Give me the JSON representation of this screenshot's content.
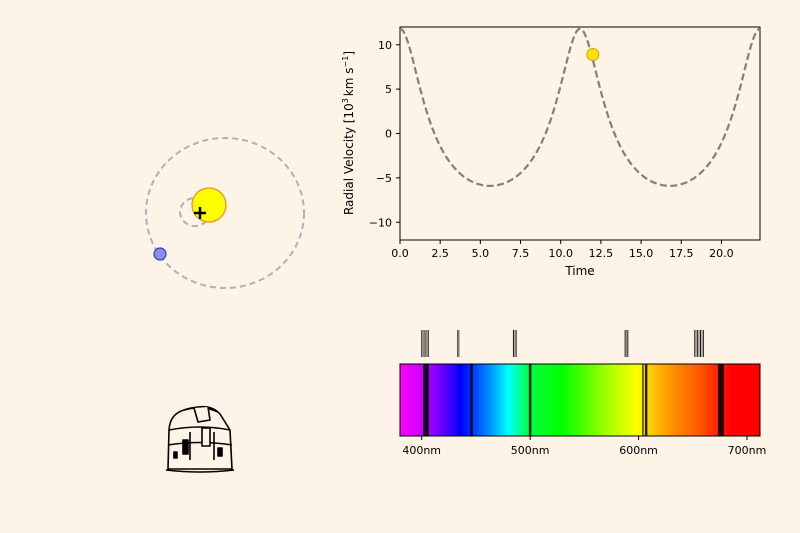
{
  "chart_data": [
    {
      "type": "orbit-diagram",
      "star": {
        "color": "#ffff00",
        "edge": "#f08a28"
      },
      "planet": {
        "color": "#8a8cf0",
        "edge": "#3a3cb0"
      },
      "barycenter_marker": "+",
      "orbit_color": "#b0b0b8"
    },
    {
      "type": "line",
      "xlabel": "Time",
      "ylabel_main": "Radial Velocity [10",
      "ylabel_sup1": "3",
      "ylabel_mid": "km s",
      "ylabel_sup2": "−1",
      "ylabel_end": "]",
      "xlim": [
        0,
        22.4
      ],
      "ylim": [
        -12,
        12
      ],
      "xticks": [
        0,
        2.5,
        5,
        7.5,
        10,
        12.5,
        15,
        17.5,
        20
      ],
      "xtick_labels": [
        "0.0",
        "2.5",
        "5.0",
        "7.5",
        "10.0",
        "12.5",
        "15.0",
        "17.5",
        "20.0"
      ],
      "yticks": [
        -10,
        -5,
        0,
        5,
        10
      ],
      "ytick_labels": [
        "−10",
        "−5",
        "0",
        "5",
        "10"
      ],
      "curve": {
        "period": 11.2,
        "peak_time": 11.2,
        "max": 11.8,
        "min": -5.9,
        "eccentricity": 0.35,
        "color": "#808080",
        "style": "dashed"
      },
      "current_point": {
        "x": 12.0,
        "y": 8.9,
        "color": "#ffe000"
      }
    },
    {
      "type": "spectrum",
      "xlim": [
        380,
        712
      ],
      "tick_values": [
        400,
        500,
        600,
        700
      ],
      "tick_labels": [
        "400nm",
        "500nm",
        "600nm",
        "700nm"
      ],
      "absorption_lines_nm": [
        404,
        446,
        500,
        607,
        676
      ],
      "shifted_lines_nm": [
        395,
        434,
        486,
        589,
        656
      ]
    }
  ],
  "icons": {
    "observatory": "observatory-dome-icon"
  }
}
